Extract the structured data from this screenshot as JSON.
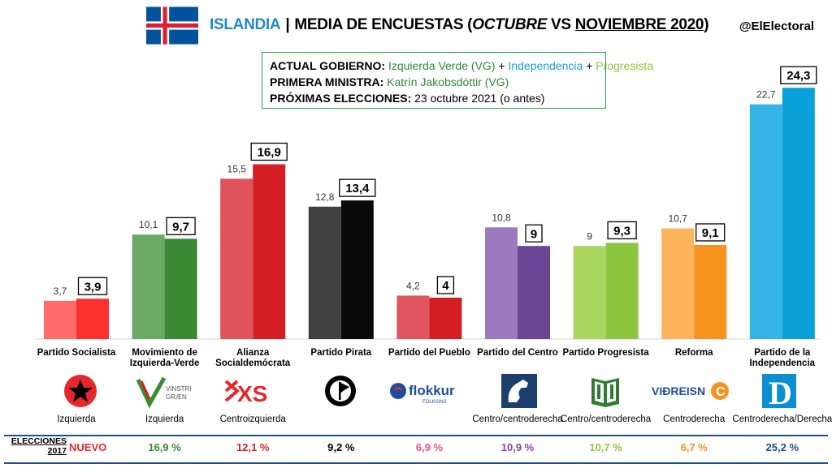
{
  "header": {
    "country": "ISLANDIA",
    "separator": "|",
    "title_part1": "MEDIA DE ENCUESTAS (",
    "title_oct": "OCTUBRE",
    "title_vs": " VS ",
    "title_nov": "NOVIEMBRE 2020",
    "title_close": ")",
    "handle": "@ElElectoral"
  },
  "info": {
    "gov_label": "ACTUAL GOBIERNO:",
    "gov_p1": "Izquierda Verde (VG)",
    "plus": " + ",
    "gov_p2": "Independencia",
    "gov_p3": "Progresista",
    "pm_label": "PRIMERA MINISTRA:",
    "pm_value": "Katrín Jakobsdóttir (VG)",
    "elec_label": "PRÓXIMAS ELECCIONES:",
    "elec_value": "23 octubre 2021 (o antes)"
  },
  "chart_data": {
    "type": "bar",
    "categories": [
      "Partido Socialista",
      "Movimiento de Izquierda-Verde",
      "Alianza Socialdemócrata",
      "Partido Pirata",
      "Partido del Pueblo",
      "Partido del Centro",
      "Partido Progresista",
      "Reforma",
      "Partido de la Independencia"
    ],
    "series": [
      {
        "name": "OCTUBRE",
        "values": [
          3.7,
          10.1,
          15.5,
          12.8,
          4.2,
          10.8,
          9,
          10.7,
          22.7
        ]
      },
      {
        "name": "NOVIEMBRE 2020",
        "values": [
          3.9,
          9.7,
          16.9,
          13.4,
          4,
          9,
          9.3,
          9.1,
          24.3
        ]
      }
    ],
    "labels_oct": [
      "3,7",
      "10,1",
      "15,5",
      "12,8",
      "4,2",
      "10,8",
      "9",
      "10,7",
      "22,7"
    ],
    "labels_nov": [
      "3,9",
      "9,7",
      "16,9",
      "13,4",
      "4",
      "9",
      "9,3",
      "9,1",
      "24,3"
    ],
    "colors_oct": [
      "#ff6b6b",
      "#6aaa64",
      "#e0525a",
      "#404040",
      "#e05560",
      "#9b7bbd",
      "#a8d65e",
      "#fdb45a",
      "#33b3e6"
    ],
    "colors_nov": [
      "#ff3030",
      "#3a8a35",
      "#d41e24",
      "#0a0a0a",
      "#d41e24",
      "#6a4596",
      "#8cc63f",
      "#f7921e",
      "#0aa0d8"
    ],
    "ylim": [
      0,
      25
    ],
    "grid": false
  },
  "parties": [
    {
      "label_l1": "Partido Socialista",
      "label_l2": "",
      "ideology": "Izquierda",
      "logo_icon": "socialist-star-icon"
    },
    {
      "label_l1": "Movimiento de",
      "label_l2": "Izquierda-Verde",
      "ideology": "Izquierda",
      "logo_icon": "vinstri-graen-logo"
    },
    {
      "label_l1": "Alianza",
      "label_l2": "Socialdemócrata",
      "ideology": "Centroizquierda",
      "logo_icon": "xs-logo"
    },
    {
      "label_l1": "Partido Pirata",
      "label_l2": "",
      "ideology": "",
      "logo_icon": "pirate-flag-icon"
    },
    {
      "label_l1": "Partido del Pueblo",
      "label_l2": "",
      "ideology": "",
      "logo_icon": "flokkur-folksins-logo"
    },
    {
      "label_l1": "Partido del Centro",
      "label_l2": "",
      "ideology": "Centro/centroderecha",
      "logo_icon": "horse-icon"
    },
    {
      "label_l1": "Partido Progresista",
      "label_l2": "",
      "ideology": "Centro/centroderecha",
      "logo_icon": "progressive-book-icon"
    },
    {
      "label_l1": "Reforma",
      "label_l2": "",
      "ideology": "Centroderecha",
      "logo_icon": "vidreisn-logo"
    },
    {
      "label_l1": "Partido de la",
      "label_l2": "Independencia",
      "ideology": "Centroderecha/Derecha",
      "logo_icon": "independence-d-logo"
    }
  ],
  "logo_text": {
    "vinstri_1": "VINSTRI",
    "vinstri_2": "GRÆN",
    "xs": "XS",
    "flokkur": "flokkur",
    "folksins": "FÓLKSINS",
    "vidreisn": "VIÐREISN",
    "vidreisn_c": "C",
    "d": "D"
  },
  "elections2017": {
    "label_l1": "ELECCIONES",
    "label_l2": "2017",
    "new_label": "NUEVO",
    "values": [
      "16,9 %",
      "12,1 %",
      "9,2 %",
      "6,9 %",
      "10,9 %",
      "10,7 %",
      "6,7 %",
      "25,2 %"
    ],
    "colors": [
      "#3a8a35",
      "#d41e24",
      "#000000",
      "#e8508a",
      "#8b3fb5",
      "#8cc63f",
      "#f7921e",
      "#1d4e9e"
    ]
  }
}
